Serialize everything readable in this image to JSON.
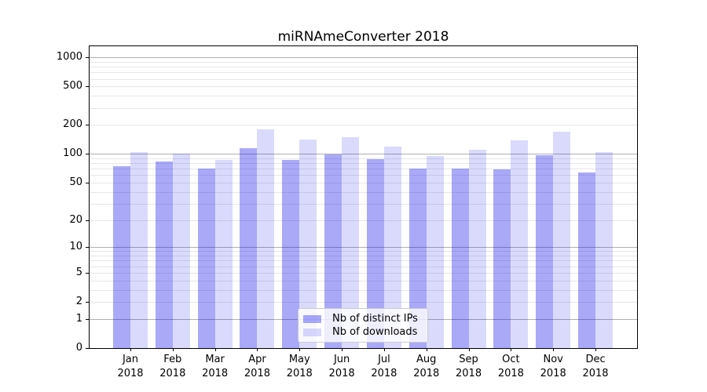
{
  "chart_data": {
    "type": "bar",
    "title": "miRNAmeConverter 2018",
    "categories": [
      "Jan",
      "Feb",
      "Mar",
      "Apr",
      "May",
      "Jun",
      "Jul",
      "Aug",
      "Sep",
      "Oct",
      "Nov",
      "Dec"
    ],
    "year_label": "2018",
    "series": [
      {
        "name": "Nb of distinct IPs",
        "color": "rgba(10,10,235,0.35)",
        "values": [
          75,
          84,
          71,
          114,
          87,
          99,
          89,
          71,
          70,
          69,
          97,
          64
        ]
      },
      {
        "name": "Nb of downloads",
        "color": "rgba(10,10,235,0.15)",
        "values": [
          105,
          101,
          86,
          180,
          142,
          150,
          119,
          96,
          110,
          139,
          171,
          104
        ]
      }
    ],
    "xlabel": "",
    "ylabel": "",
    "y_scale": "log10(value+1)",
    "y_ticks": [
      0,
      1,
      2,
      5,
      10,
      20,
      50,
      100,
      200,
      500,
      1000
    ],
    "y_major_gridlines": [
      1,
      10,
      100,
      1000
    ],
    "ylim": [
      0,
      1305
    ],
    "grid": true,
    "legend_position": "lower-center",
    "colors": {
      "major_grid": "#b0b0b0",
      "minor_grid": "#e7e7e7",
      "spine": "#000000",
      "text": "#000000"
    }
  }
}
